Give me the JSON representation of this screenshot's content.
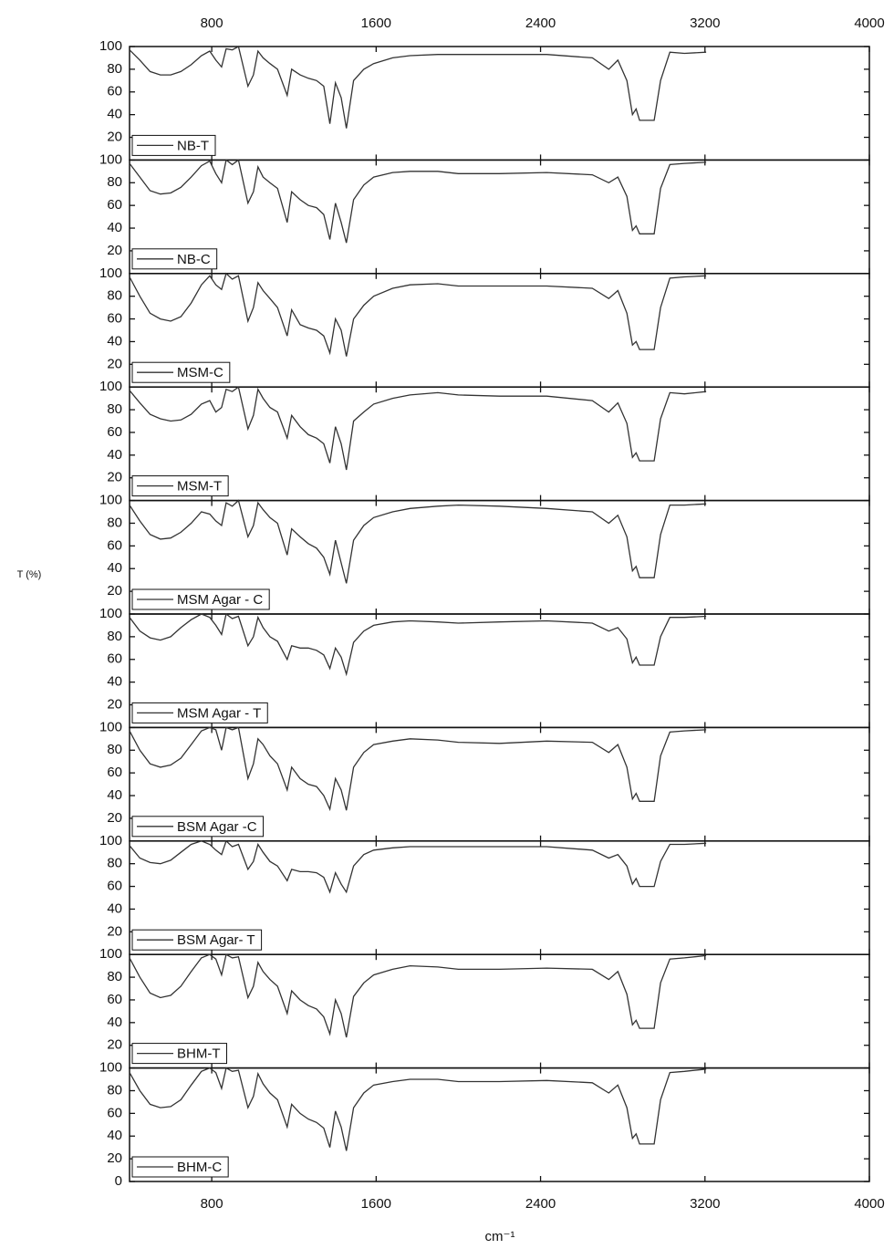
{
  "ylabel": "T (%)",
  "xlabel": "cm⁻¹",
  "chart_data": [
    {
      "type": "line",
      "xlim": [
        400,
        4000
      ],
      "ylim": [
        0,
        100
      ],
      "yticks": [
        20,
        40,
        60,
        80,
        100
      ],
      "xticks": [
        800,
        1600,
        2400,
        3200,
        4000
      ],
      "xaxis": "top",
      "x": [
        400,
        450,
        500,
        550,
        600,
        650,
        700,
        750,
        790,
        820,
        848,
        870,
        900,
        930,
        976,
        1003,
        1025,
        1050,
        1083,
        1120,
        1167,
        1189,
        1230,
        1270,
        1310,
        1345,
        1375,
        1402,
        1430,
        1455,
        1490,
        1540,
        1588,
        1680,
        1765,
        1900,
        2000,
        2200,
        2430,
        2652,
        2732,
        2776,
        2820,
        2847,
        2865,
        2882,
        2953,
        2984,
        3029,
        3100,
        3206
      ],
      "series": [
        {
          "name": "NB-T",
          "color": "#333333",
          "values": [
            97,
            88,
            78,
            75,
            75,
            78,
            84,
            92,
            96,
            88,
            82,
            98,
            97,
            100,
            65,
            75,
            96,
            90,
            85,
            80,
            57,
            80,
            75,
            72,
            70,
            65,
            32,
            68,
            55,
            28,
            70,
            80,
            85,
            90,
            92,
            93,
            93,
            93,
            93,
            90,
            80,
            88,
            70,
            40,
            45,
            35,
            35,
            70,
            95,
            94,
            95
          ]
        }
      ]
    },
    {
      "type": "line",
      "xlim": [
        400,
        4000
      ],
      "ylim": [
        0,
        100
      ],
      "yticks": [
        20,
        40,
        60,
        80,
        100
      ],
      "x": [
        400,
        450,
        500,
        550,
        600,
        650,
        700,
        750,
        790,
        820,
        848,
        870,
        900,
        930,
        976,
        1003,
        1025,
        1050,
        1083,
        1120,
        1167,
        1189,
        1230,
        1270,
        1310,
        1345,
        1375,
        1402,
        1430,
        1455,
        1490,
        1540,
        1588,
        1680,
        1765,
        1900,
        2000,
        2200,
        2430,
        2652,
        2732,
        2776,
        2820,
        2847,
        2865,
        2882,
        2953,
        2984,
        3029,
        3100,
        3206
      ],
      "series": [
        {
          "name": "NB-C",
          "color": "#333333",
          "values": [
            97,
            85,
            73,
            70,
            71,
            76,
            85,
            95,
            99,
            88,
            80,
            100,
            96,
            100,
            62,
            72,
            94,
            85,
            80,
            75,
            45,
            72,
            65,
            60,
            58,
            52,
            30,
            62,
            45,
            27,
            65,
            78,
            85,
            89,
            90,
            90,
            88,
            88,
            89,
            87,
            80,
            85,
            68,
            38,
            42,
            35,
            35,
            75,
            96,
            97,
            98
          ]
        }
      ]
    },
    {
      "type": "line",
      "xlim": [
        400,
        4000
      ],
      "ylim": [
        0,
        100
      ],
      "yticks": [
        20,
        40,
        60,
        80,
        100
      ],
      "x": [
        400,
        450,
        500,
        550,
        600,
        650,
        700,
        750,
        790,
        820,
        848,
        870,
        900,
        930,
        976,
        1003,
        1025,
        1050,
        1083,
        1120,
        1167,
        1189,
        1230,
        1270,
        1310,
        1345,
        1375,
        1402,
        1430,
        1455,
        1490,
        1540,
        1588,
        1680,
        1765,
        1900,
        2000,
        2200,
        2430,
        2652,
        2732,
        2776,
        2820,
        2847,
        2865,
        2882,
        2953,
        2984,
        3029,
        3100,
        3206
      ],
      "series": [
        {
          "name": "MSM-C",
          "color": "#333333",
          "values": [
            97,
            80,
            65,
            60,
            58,
            62,
            74,
            90,
            98,
            90,
            86,
            100,
            95,
            98,
            58,
            70,
            92,
            85,
            78,
            70,
            45,
            68,
            55,
            52,
            50,
            45,
            30,
            60,
            50,
            27,
            60,
            72,
            80,
            87,
            90,
            91,
            89,
            89,
            89,
            87,
            78,
            85,
            65,
            37,
            40,
            33,
            33,
            70,
            96,
            97,
            98
          ]
        }
      ]
    },
    {
      "type": "line",
      "xlim": [
        400,
        4000
      ],
      "ylim": [
        0,
        100
      ],
      "yticks": [
        20,
        40,
        60,
        80,
        100
      ],
      "x": [
        400,
        450,
        500,
        550,
        600,
        650,
        700,
        750,
        790,
        820,
        848,
        870,
        900,
        930,
        976,
        1003,
        1025,
        1050,
        1083,
        1120,
        1167,
        1189,
        1230,
        1270,
        1310,
        1345,
        1375,
        1402,
        1430,
        1455,
        1490,
        1540,
        1588,
        1680,
        1765,
        1900,
        2000,
        2200,
        2430,
        2652,
        2732,
        2776,
        2820,
        2847,
        2865,
        2882,
        2953,
        2984,
        3029,
        3100,
        3206
      ],
      "series": [
        {
          "name": "MSM-T",
          "color": "#333333",
          "values": [
            97,
            86,
            76,
            72,
            70,
            71,
            76,
            85,
            88,
            78,
            82,
            98,
            96,
            100,
            63,
            75,
            98,
            90,
            82,
            78,
            55,
            75,
            65,
            58,
            55,
            50,
            33,
            65,
            50,
            27,
            70,
            78,
            85,
            90,
            93,
            95,
            93,
            92,
            92,
            88,
            78,
            86,
            68,
            38,
            42,
            35,
            35,
            72,
            95,
            94,
            96
          ]
        }
      ]
    },
    {
      "type": "line",
      "xlim": [
        400,
        4000
      ],
      "ylim": [
        0,
        100
      ],
      "yticks": [
        20,
        40,
        60,
        80,
        100
      ],
      "x": [
        400,
        450,
        500,
        550,
        600,
        650,
        700,
        750,
        790,
        820,
        848,
        870,
        900,
        930,
        976,
        1003,
        1025,
        1050,
        1083,
        1120,
        1167,
        1189,
        1230,
        1270,
        1310,
        1345,
        1375,
        1402,
        1430,
        1455,
        1490,
        1540,
        1588,
        1680,
        1765,
        1900,
        2000,
        2200,
        2430,
        2652,
        2732,
        2776,
        2820,
        2847,
        2865,
        2882,
        2953,
        2984,
        3029,
        3100,
        3206
      ],
      "series": [
        {
          "name": "MSM Agar - C",
          "color": "#333333",
          "values": [
            96,
            82,
            70,
            66,
            67,
            72,
            80,
            90,
            88,
            82,
            78,
            98,
            95,
            100,
            68,
            78,
            98,
            92,
            85,
            80,
            52,
            75,
            68,
            62,
            58,
            50,
            35,
            65,
            45,
            27,
            65,
            78,
            85,
            90,
            93,
            95,
            96,
            95,
            93,
            90,
            80,
            87,
            68,
            38,
            42,
            32,
            32,
            70,
            96,
            96,
            97
          ]
        }
      ]
    },
    {
      "type": "line",
      "xlim": [
        400,
        4000
      ],
      "ylim": [
        0,
        100
      ],
      "yticks": [
        20,
        40,
        60,
        80,
        100
      ],
      "x": [
        400,
        450,
        500,
        550,
        600,
        650,
        700,
        750,
        790,
        820,
        848,
        870,
        900,
        930,
        976,
        1003,
        1025,
        1050,
        1083,
        1120,
        1167,
        1189,
        1230,
        1270,
        1310,
        1345,
        1375,
        1402,
        1430,
        1455,
        1490,
        1540,
        1588,
        1680,
        1765,
        1900,
        2000,
        2200,
        2430,
        2652,
        2732,
        2776,
        2820,
        2847,
        2865,
        2882,
        2953,
        2984,
        3029,
        3100,
        3206
      ],
      "series": [
        {
          "name": "MSM Agar - T",
          "color": "#333333",
          "values": [
            97,
            85,
            79,
            77,
            80,
            88,
            95,
            100,
            97,
            90,
            82,
            100,
            96,
            98,
            72,
            80,
            97,
            88,
            80,
            76,
            60,
            72,
            70,
            70,
            68,
            64,
            52,
            70,
            62,
            47,
            75,
            85,
            90,
            93,
            94,
            93,
            92,
            93,
            94,
            92,
            85,
            88,
            78,
            57,
            62,
            55,
            55,
            80,
            97,
            97,
            98
          ]
        }
      ]
    },
    {
      "type": "line",
      "xlim": [
        400,
        4000
      ],
      "ylim": [
        0,
        100
      ],
      "yticks": [
        20,
        40,
        60,
        80,
        100
      ],
      "x": [
        400,
        450,
        500,
        550,
        600,
        650,
        700,
        750,
        790,
        820,
        848,
        870,
        900,
        930,
        976,
        1003,
        1025,
        1050,
        1083,
        1120,
        1167,
        1189,
        1230,
        1270,
        1310,
        1345,
        1375,
        1402,
        1430,
        1455,
        1490,
        1540,
        1588,
        1680,
        1765,
        1900,
        2000,
        2200,
        2430,
        2652,
        2732,
        2776,
        2820,
        2847,
        2865,
        2882,
        2953,
        2984,
        3029,
        3100,
        3206
      ],
      "series": [
        {
          "name": "BSM Agar -C",
          "color": "#333333",
          "values": [
            97,
            80,
            68,
            65,
            67,
            73,
            85,
            97,
            100,
            98,
            80,
            100,
            98,
            100,
            55,
            68,
            90,
            85,
            75,
            68,
            45,
            65,
            55,
            50,
            48,
            40,
            28,
            55,
            45,
            27,
            65,
            78,
            85,
            88,
            90,
            89,
            87,
            86,
            88,
            87,
            78,
            85,
            65,
            37,
            42,
            35,
            35,
            75,
            96,
            97,
            98
          ]
        }
      ]
    },
    {
      "type": "line",
      "xlim": [
        400,
        4000
      ],
      "ylim": [
        0,
        100
      ],
      "yticks": [
        20,
        40,
        60,
        80,
        100
      ],
      "x": [
        400,
        450,
        500,
        550,
        600,
        650,
        700,
        750,
        790,
        820,
        848,
        870,
        900,
        930,
        976,
        1003,
        1025,
        1050,
        1083,
        1120,
        1167,
        1189,
        1230,
        1270,
        1310,
        1345,
        1375,
        1402,
        1430,
        1455,
        1490,
        1540,
        1588,
        1680,
        1765,
        1900,
        2000,
        2200,
        2430,
        2652,
        2732,
        2776,
        2820,
        2847,
        2865,
        2882,
        2953,
        2984,
        3029,
        3100,
        3206
      ],
      "series": [
        {
          "name": "BSM Agar- T",
          "color": "#333333",
          "values": [
            96,
            85,
            81,
            80,
            83,
            90,
            97,
            100,
            97,
            92,
            88,
            100,
            95,
            97,
            75,
            82,
            97,
            90,
            82,
            78,
            65,
            75,
            73,
            73,
            72,
            68,
            55,
            72,
            62,
            55,
            78,
            88,
            92,
            94,
            95,
            95,
            95,
            95,
            95,
            92,
            85,
            88,
            78,
            62,
            67,
            60,
            60,
            82,
            97,
            97,
            98
          ]
        }
      ]
    },
    {
      "type": "line",
      "xlim": [
        400,
        4000
      ],
      "ylim": [
        0,
        100
      ],
      "yticks": [
        20,
        40,
        60,
        80,
        100
      ],
      "x": [
        400,
        450,
        500,
        550,
        600,
        650,
        700,
        750,
        790,
        820,
        848,
        870,
        900,
        930,
        976,
        1003,
        1025,
        1050,
        1083,
        1120,
        1167,
        1189,
        1230,
        1270,
        1310,
        1345,
        1375,
        1402,
        1430,
        1455,
        1490,
        1540,
        1588,
        1680,
        1765,
        1900,
        2000,
        2200,
        2430,
        2652,
        2732,
        2776,
        2820,
        2847,
        2865,
        2882,
        2953,
        2984,
        3029,
        3100,
        3206
      ],
      "series": [
        {
          "name": "BHM-T",
          "color": "#333333",
          "values": [
            97,
            80,
            66,
            62,
            64,
            72,
            85,
            97,
            100,
            96,
            82,
            100,
            97,
            98,
            62,
            72,
            93,
            85,
            78,
            72,
            48,
            68,
            60,
            55,
            52,
            45,
            30,
            60,
            48,
            27,
            63,
            75,
            82,
            87,
            90,
            89,
            87,
            87,
            88,
            87,
            78,
            85,
            65,
            38,
            42,
            35,
            35,
            75,
            96,
            97,
            99
          ]
        }
      ]
    },
    {
      "type": "line",
      "xlim": [
        400,
        4000
      ],
      "ylim": [
        0,
        100
      ],
      "yticks": [
        0,
        20,
        40,
        60,
        80,
        100
      ],
      "xticks": [
        800,
        1600,
        2400,
        3200,
        4000
      ],
      "xaxis": "bottom",
      "x": [
        400,
        450,
        500,
        550,
        600,
        650,
        700,
        750,
        790,
        820,
        848,
        870,
        900,
        930,
        976,
        1003,
        1025,
        1050,
        1083,
        1120,
        1167,
        1189,
        1230,
        1270,
        1310,
        1345,
        1375,
        1402,
        1430,
        1455,
        1490,
        1540,
        1588,
        1680,
        1765,
        1900,
        2000,
        2200,
        2430,
        2652,
        2732,
        2776,
        2820,
        2847,
        2865,
        2882,
        2953,
        2984,
        3029,
        3100,
        3206
      ],
      "series": [
        {
          "name": "BHM-C",
          "color": "#333333",
          "values": [
            96,
            80,
            68,
            65,
            66,
            72,
            85,
            97,
            100,
            96,
            82,
            100,
            97,
            98,
            65,
            75,
            95,
            86,
            78,
            72,
            48,
            68,
            60,
            55,
            52,
            47,
            30,
            62,
            48,
            27,
            65,
            78,
            85,
            88,
            90,
            90,
            88,
            88,
            89,
            87,
            78,
            85,
            65,
            38,
            42,
            33,
            33,
            72,
            96,
            97,
            99
          ]
        }
      ]
    }
  ]
}
